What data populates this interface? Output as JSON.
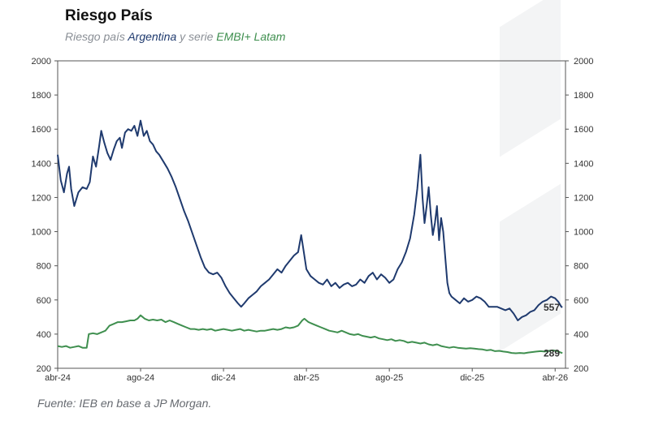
{
  "header": {
    "title": "Riesgo País",
    "subtitle_parts": [
      "Riesgo país ",
      "Argentina",
      " y serie ",
      "EMBI+ Latam"
    ]
  },
  "footer": {
    "source": "Fuente: IEB en base a JP Morgan."
  },
  "colors": {
    "argentina": "#1f3a6e",
    "embi": "#3f8f4f",
    "axis": "#555555"
  },
  "chart_data": {
    "type": "line",
    "title": "Riesgo País",
    "subtitle": "Riesgo país Argentina y serie EMBI+ Latam",
    "xlabel": "",
    "ylabel": "",
    "x_tick_labels": [
      "abr-24",
      "ago-24",
      "dic-24",
      "abr-25",
      "ago-25",
      "dic-25",
      "abr-26"
    ],
    "x_tick_months": [
      0,
      4,
      8,
      12,
      16,
      20,
      24
    ],
    "ylim": [
      200,
      2000
    ],
    "y_ticks": [
      200,
      400,
      600,
      800,
      1000,
      1200,
      1400,
      1600,
      1800,
      2000
    ],
    "y2lim": [
      200,
      2000
    ],
    "grid": false,
    "legend": "none",
    "end_labels": {
      "argentina": "557",
      "embi": "289"
    },
    "series": [
      {
        "color": "#1f3a6e",
        "points": [
          [
            0.0,
            1450
          ],
          [
            0.15,
            1300
          ],
          [
            0.3,
            1230
          ],
          [
            0.45,
            1340
          ],
          [
            0.55,
            1380
          ],
          [
            0.65,
            1250
          ],
          [
            0.8,
            1150
          ],
          [
            1.0,
            1230
          ],
          [
            1.2,
            1260
          ],
          [
            1.4,
            1250
          ],
          [
            1.55,
            1290
          ],
          [
            1.7,
            1440
          ],
          [
            1.85,
            1380
          ],
          [
            2.0,
            1500
          ],
          [
            2.1,
            1590
          ],
          [
            2.25,
            1520
          ],
          [
            2.4,
            1460
          ],
          [
            2.55,
            1420
          ],
          [
            2.7,
            1480
          ],
          [
            2.85,
            1530
          ],
          [
            3.0,
            1550
          ],
          [
            3.1,
            1490
          ],
          [
            3.25,
            1580
          ],
          [
            3.4,
            1600
          ],
          [
            3.55,
            1590
          ],
          [
            3.7,
            1620
          ],
          [
            3.85,
            1560
          ],
          [
            4.0,
            1650
          ],
          [
            4.15,
            1560
          ],
          [
            4.3,
            1590
          ],
          [
            4.45,
            1530
          ],
          [
            4.6,
            1510
          ],
          [
            4.75,
            1470
          ],
          [
            4.9,
            1450
          ],
          [
            5.1,
            1410
          ],
          [
            5.3,
            1370
          ],
          [
            5.5,
            1320
          ],
          [
            5.7,
            1260
          ],
          [
            5.9,
            1190
          ],
          [
            6.1,
            1120
          ],
          [
            6.3,
            1060
          ],
          [
            6.5,
            990
          ],
          [
            6.7,
            920
          ],
          [
            6.9,
            850
          ],
          [
            7.1,
            790
          ],
          [
            7.3,
            760
          ],
          [
            7.5,
            750
          ],
          [
            7.7,
            760
          ],
          [
            7.9,
            730
          ],
          [
            8.1,
            680
          ],
          [
            8.3,
            640
          ],
          [
            8.5,
            610
          ],
          [
            8.7,
            580
          ],
          [
            8.85,
            560
          ],
          [
            9.0,
            580
          ],
          [
            9.2,
            610
          ],
          [
            9.4,
            630
          ],
          [
            9.6,
            650
          ],
          [
            9.8,
            680
          ],
          [
            10.0,
            700
          ],
          [
            10.2,
            720
          ],
          [
            10.4,
            750
          ],
          [
            10.6,
            780
          ],
          [
            10.8,
            760
          ],
          [
            11.0,
            800
          ],
          [
            11.2,
            830
          ],
          [
            11.4,
            860
          ],
          [
            11.6,
            880
          ],
          [
            11.75,
            980
          ],
          [
            11.85,
            900
          ],
          [
            12.0,
            780
          ],
          [
            12.2,
            740
          ],
          [
            12.4,
            720
          ],
          [
            12.6,
            700
          ],
          [
            12.8,
            690
          ],
          [
            13.0,
            720
          ],
          [
            13.2,
            680
          ],
          [
            13.4,
            700
          ],
          [
            13.6,
            670
          ],
          [
            13.8,
            690
          ],
          [
            14.0,
            700
          ],
          [
            14.2,
            680
          ],
          [
            14.4,
            690
          ],
          [
            14.6,
            720
          ],
          [
            14.8,
            700
          ],
          [
            15.0,
            740
          ],
          [
            15.2,
            760
          ],
          [
            15.4,
            720
          ],
          [
            15.6,
            750
          ],
          [
            15.8,
            730
          ],
          [
            16.0,
            700
          ],
          [
            16.2,
            720
          ],
          [
            16.4,
            780
          ],
          [
            16.6,
            820
          ],
          [
            16.8,
            880
          ],
          [
            17.0,
            960
          ],
          [
            17.2,
            1100
          ],
          [
            17.35,
            1250
          ],
          [
            17.5,
            1450
          ],
          [
            17.6,
            1200
          ],
          [
            17.7,
            1050
          ],
          [
            17.8,
            1150
          ],
          [
            17.9,
            1260
          ],
          [
            18.0,
            1100
          ],
          [
            18.1,
            980
          ],
          [
            18.2,
            1050
          ],
          [
            18.3,
            1150
          ],
          [
            18.4,
            950
          ],
          [
            18.5,
            1080
          ],
          [
            18.6,
            1000
          ],
          [
            18.7,
            850
          ],
          [
            18.8,
            700
          ],
          [
            18.9,
            640
          ],
          [
            19.0,
            620
          ],
          [
            19.2,
            600
          ],
          [
            19.4,
            580
          ],
          [
            19.6,
            610
          ],
          [
            19.8,
            590
          ],
          [
            20.0,
            600
          ],
          [
            20.2,
            620
          ],
          [
            20.4,
            610
          ],
          [
            20.6,
            590
          ],
          [
            20.8,
            560
          ],
          [
            21.0,
            560
          ],
          [
            21.2,
            560
          ],
          [
            21.4,
            550
          ],
          [
            21.6,
            540
          ],
          [
            21.8,
            550
          ],
          [
            22.0,
            520
          ],
          [
            22.2,
            480
          ],
          [
            22.4,
            500
          ],
          [
            22.6,
            510
          ],
          [
            22.8,
            530
          ],
          [
            23.0,
            540
          ],
          [
            23.2,
            570
          ],
          [
            23.4,
            590
          ],
          [
            23.6,
            600
          ],
          [
            23.8,
            620
          ],
          [
            24.0,
            610
          ],
          [
            24.15,
            590
          ],
          [
            24.3,
            560
          ],
          [
            24.35,
            557
          ]
        ]
      },
      {
        "color": "#3f8f4f",
        "points": [
          [
            0.0,
            330
          ],
          [
            0.2,
            325
          ],
          [
            0.4,
            330
          ],
          [
            0.6,
            320
          ],
          [
            0.8,
            325
          ],
          [
            1.0,
            330
          ],
          [
            1.2,
            320
          ],
          [
            1.4,
            320
          ],
          [
            1.5,
            400
          ],
          [
            1.7,
            405
          ],
          [
            1.9,
            400
          ],
          [
            2.1,
            410
          ],
          [
            2.3,
            420
          ],
          [
            2.5,
            450
          ],
          [
            2.7,
            460
          ],
          [
            2.9,
            470
          ],
          [
            3.1,
            470
          ],
          [
            3.3,
            475
          ],
          [
            3.5,
            480
          ],
          [
            3.7,
            480
          ],
          [
            3.85,
            490
          ],
          [
            4.0,
            510
          ],
          [
            4.2,
            490
          ],
          [
            4.4,
            480
          ],
          [
            4.6,
            485
          ],
          [
            4.8,
            480
          ],
          [
            5.0,
            485
          ],
          [
            5.2,
            470
          ],
          [
            5.4,
            480
          ],
          [
            5.6,
            470
          ],
          [
            5.8,
            460
          ],
          [
            6.0,
            450
          ],
          [
            6.2,
            440
          ],
          [
            6.4,
            430
          ],
          [
            6.6,
            430
          ],
          [
            6.8,
            425
          ],
          [
            7.0,
            430
          ],
          [
            7.2,
            425
          ],
          [
            7.4,
            430
          ],
          [
            7.6,
            420
          ],
          [
            7.8,
            425
          ],
          [
            8.0,
            430
          ],
          [
            8.2,
            425
          ],
          [
            8.4,
            420
          ],
          [
            8.6,
            425
          ],
          [
            8.8,
            430
          ],
          [
            9.0,
            420
          ],
          [
            9.2,
            425
          ],
          [
            9.4,
            420
          ],
          [
            9.6,
            415
          ],
          [
            9.8,
            420
          ],
          [
            10.0,
            420
          ],
          [
            10.2,
            425
          ],
          [
            10.4,
            430
          ],
          [
            10.6,
            425
          ],
          [
            10.8,
            430
          ],
          [
            11.0,
            440
          ],
          [
            11.2,
            435
          ],
          [
            11.4,
            440
          ],
          [
            11.6,
            450
          ],
          [
            11.8,
            480
          ],
          [
            11.9,
            490
          ],
          [
            12.1,
            470
          ],
          [
            12.3,
            460
          ],
          [
            12.5,
            450
          ],
          [
            12.7,
            440
          ],
          [
            12.9,
            430
          ],
          [
            13.1,
            420
          ],
          [
            13.3,
            415
          ],
          [
            13.5,
            410
          ],
          [
            13.7,
            420
          ],
          [
            13.9,
            410
          ],
          [
            14.1,
            400
          ],
          [
            14.3,
            395
          ],
          [
            14.5,
            400
          ],
          [
            14.7,
            390
          ],
          [
            14.9,
            385
          ],
          [
            15.1,
            380
          ],
          [
            15.3,
            385
          ],
          [
            15.5,
            375
          ],
          [
            15.7,
            370
          ],
          [
            15.9,
            365
          ],
          [
            16.1,
            370
          ],
          [
            16.3,
            360
          ],
          [
            16.5,
            365
          ],
          [
            16.7,
            360
          ],
          [
            16.9,
            350
          ],
          [
            17.1,
            355
          ],
          [
            17.3,
            350
          ],
          [
            17.5,
            345
          ],
          [
            17.7,
            350
          ],
          [
            17.9,
            340
          ],
          [
            18.1,
            335
          ],
          [
            18.3,
            340
          ],
          [
            18.5,
            330
          ],
          [
            18.7,
            325
          ],
          [
            18.9,
            320
          ],
          [
            19.1,
            325
          ],
          [
            19.3,
            320
          ],
          [
            19.5,
            318
          ],
          [
            19.7,
            315
          ],
          [
            19.9,
            318
          ],
          [
            20.1,
            315
          ],
          [
            20.3,
            312
          ],
          [
            20.5,
            310
          ],
          [
            20.7,
            305
          ],
          [
            20.9,
            308
          ],
          [
            21.1,
            300
          ],
          [
            21.3,
            302
          ],
          [
            21.5,
            298
          ],
          [
            21.7,
            295
          ],
          [
            21.9,
            290
          ],
          [
            22.1,
            288
          ],
          [
            22.3,
            290
          ],
          [
            22.5,
            288
          ],
          [
            22.7,
            292
          ],
          [
            22.9,
            295
          ],
          [
            23.1,
            298
          ],
          [
            23.3,
            300
          ],
          [
            23.5,
            298
          ],
          [
            23.7,
            302
          ],
          [
            23.9,
            305
          ],
          [
            24.1,
            300
          ],
          [
            24.35,
            289
          ]
        ]
      }
    ]
  }
}
